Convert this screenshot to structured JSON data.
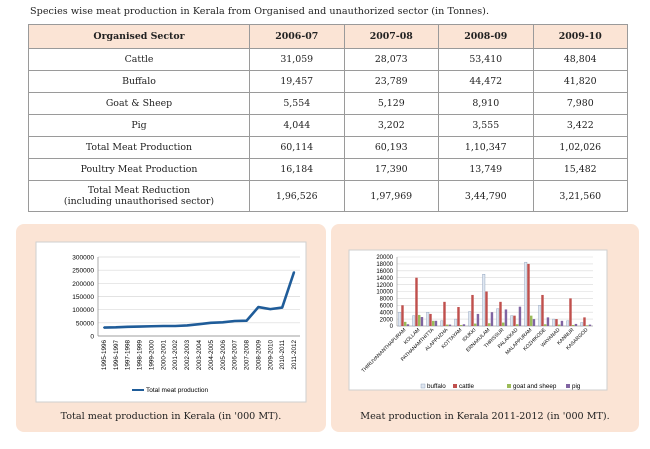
{
  "heading": "Species wise meat production in Kerala from Organised and unauthorized sector (in Tonnes).",
  "table": {
    "columns": [
      "Organised Sector",
      "2006-07",
      "2007-08",
      "2008-09",
      "2009-10"
    ],
    "rows": [
      {
        "label": "Cattle",
        "values": [
          "31,059",
          "28,073",
          "53,410",
          "48,804"
        ]
      },
      {
        "label": "Buffalo",
        "values": [
          "19,457",
          "23,789",
          "44,472",
          "41,820"
        ]
      },
      {
        "label": "Goat & Sheep",
        "values": [
          "5,554",
          "5,129",
          "8,910",
          "7,980"
        ]
      },
      {
        "label": "Pig",
        "values": [
          "4,044",
          "3,202",
          "3,555",
          "3,422"
        ]
      },
      {
        "label": "Total Meat Production",
        "values": [
          "60,114",
          "60,193",
          "1,10,347",
          "1,02,026"
        ]
      },
      {
        "label": "Poultry Meat Production",
        "values": [
          "16,184",
          "17,390",
          "13,749",
          "15,482"
        ]
      },
      {
        "label": "Total Meat Reduction",
        "label2": "(including unauthorised sector)",
        "values": [
          "1,96,526",
          "1,97,969",
          "3,44,790",
          "3,21,560"
        ]
      }
    ]
  },
  "chart_data": [
    {
      "type": "line",
      "caption": "Total meat production in Kerala (in '000 MT).",
      "categories": [
        "1995-1996",
        "1996-1997",
        "1997-1998",
        "1998-1999",
        "1999-2000",
        "2000-2001",
        "2001-2002",
        "2002-2003",
        "2003-2004",
        "2004-2005",
        "2005-2006",
        "2006-2007",
        "2007-2008",
        "2008-2009",
        "2009-2010",
        "2010-2011",
        "2011-2012"
      ],
      "series": [
        {
          "name": "Total meat production",
          "values": [
            32000,
            33000,
            35000,
            36000,
            37000,
            38000,
            38000,
            40000,
            45000,
            50000,
            52000,
            57000,
            58000,
            110000,
            102000,
            108000,
            243000
          ]
        }
      ],
      "ylim": [
        0,
        300000
      ],
      "yticks": [
        "0",
        "50000",
        "100000",
        "150000",
        "200000",
        "250000",
        "300000"
      ],
      "colors": {
        "line": "#1f5c99"
      }
    },
    {
      "type": "bar",
      "caption": "Meat production in Kerala 2011-2012 (in '000 MT).",
      "categories": [
        "THIRUVANANTHAPURAM",
        "KOLLAM",
        "PATHANAMTHITTA",
        "ALAPPUZHA",
        "KOTTAYAM",
        "IDUKKI",
        "ERNAKULAM",
        "THRISSUR",
        "PALAKKAD",
        "MALAPPURAM",
        "KOZHIKODE",
        "WAYANAD",
        "KANNUR",
        "KASARGOD"
      ],
      "series": [
        {
          "name": "buffalo",
          "values": [
            4000,
            3000,
            4000,
            1500,
            2000,
            4200,
            15000,
            5000,
            3000,
            18500,
            6000,
            2000,
            1500,
            1000
          ]
        },
        {
          "name": "cattle",
          "values": [
            6000,
            14000,
            3500,
            7000,
            5500,
            9000,
            10000,
            7000,
            3000,
            18000,
            9000,
            2000,
            8000,
            2500
          ]
        },
        {
          "name": "goat and sheep",
          "values": [
            1200,
            3200,
            1500,
            400,
            300,
            700,
            800,
            1000,
            500,
            3000,
            500,
            400,
            300,
            200
          ]
        },
        {
          "name": "pig",
          "values": [
            500,
            2600,
            1500,
            400,
            500,
            3500,
            4000,
            4800,
            5600,
            2000,
            2500,
            1500,
            600,
            400
          ]
        }
      ],
      "ylim": [
        0,
        20000
      ],
      "yticks": [
        "0",
        "2000",
        "4000",
        "6000",
        "8000",
        "10000",
        "12000",
        "14000",
        "16000",
        "18000",
        "20000"
      ],
      "colors": {
        "buffalo": "#dfe7f1",
        "cattle": "#c0504d",
        "goat and sheep": "#9bbb59",
        "pig": "#8064a2"
      }
    }
  ]
}
